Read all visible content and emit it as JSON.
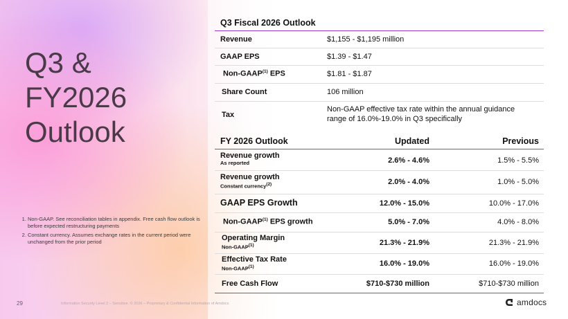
{
  "slide": {
    "big_title": "Q3 &\nFY2026\nOutlook",
    "page_number": "29",
    "footer_text": "Information Security Level 2 – Sensitive. © 2026 – Proprietary & Confidential Information of Amdocs",
    "brand": "amdocs",
    "notes": [
      "Non-GAAP. See reconciliation tables in appendix. Free cash flow outlook is before expected restructuring payments",
      "Constant currency. Assumes exchange rates in the current period were unchanged from the prior period"
    ]
  },
  "q3": {
    "title": "Q3 Fiscal 2026 Outlook",
    "rows": [
      {
        "label": "Revenue",
        "value": "$1,155 - $1,195 million"
      },
      {
        "label": "GAAP EPS",
        "value": "$1.39 - $1.47"
      },
      {
        "label_pre": "Non-GAAP",
        "label_sup": "(1)",
        "label_post": " EPS",
        "value": "$1.81 - $1.87"
      },
      {
        "label": "Share Count",
        "value": "106 million"
      },
      {
        "label": "Tax",
        "value": "Non-GAAP effective tax rate within the annual guidance range of 16.0%-19.0% in Q3 specifically"
      }
    ]
  },
  "fy": {
    "title": "FY 2026 Outlook",
    "col_updated": "Updated",
    "col_previous": "Previous",
    "rows": [
      {
        "label": "Revenue growth",
        "sub": "As reported",
        "updated": "2.6% - 4.6%",
        "previous": "1.5% - 5.5%"
      },
      {
        "label": "Revenue growth",
        "sub_pre": "Constant currency",
        "sub_sup": "(2)",
        "updated": "2.0% - 4.0%",
        "previous": "1.0% - 5.0%"
      },
      {
        "label": "GAAP EPS Growth",
        "updated": "12.0% - 15.0%",
        "previous": "10.0% - 17.0%"
      },
      {
        "label_pre": "Non-GAAP",
        "label_sup": "(1)",
        "label_post": " EPS growth",
        "updated": "5.0% - 7.0%",
        "previous": "4.0% - 8.0%"
      },
      {
        "label": "Operating Margin",
        "sub_pre": "Non-GAAP",
        "sub_sup": "(1)",
        "updated": "21.3% - 21.9%",
        "previous": "21.3% - 21.9%"
      },
      {
        "label": "Effective Tax Rate",
        "sub_pre": "Non-GAAP",
        "sub_sup": "(1)",
        "updated": "16.0% - 19.0%",
        "previous": "16.0% - 19.0%"
      },
      {
        "label": "Free Cash Flow",
        "updated": "$710-$730 million",
        "previous": "$710-$730 million"
      }
    ]
  }
}
